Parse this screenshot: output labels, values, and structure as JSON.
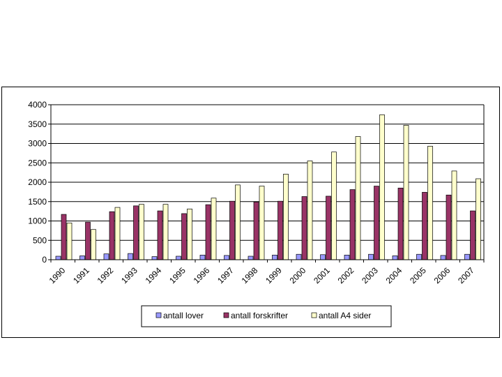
{
  "chart_data": {
    "type": "bar",
    "categories": [
      "1990",
      "1991",
      "1992",
      "1993",
      "1994",
      "1995",
      "1996",
      "1997",
      "1998",
      "1999",
      "2000",
      "2001",
      "2002",
      "2003",
      "2004",
      "2005",
      "2006",
      "2007"
    ],
    "series": [
      {
        "name": "antall lover",
        "color": "#9999ff",
        "values": [
          90,
          100,
          150,
          160,
          80,
          90,
          120,
          110,
          90,
          120,
          140,
          130,
          120,
          140,
          100,
          140,
          110,
          140
        ]
      },
      {
        "name": "antall forskrifter",
        "color": "#993366",
        "values": [
          1170,
          970,
          1240,
          1390,
          1260,
          1190,
          1420,
          1510,
          1490,
          1510,
          1630,
          1640,
          1810,
          1900,
          1850,
          1740,
          1670,
          1260
        ]
      },
      {
        "name": "antall A4 sider",
        "color": "#ffffcc",
        "values": [
          950,
          780,
          1350,
          1430,
          1430,
          1310,
          1590,
          1930,
          1900,
          2210,
          2550,
          2780,
          3180,
          3740,
          3470,
          2930,
          2290,
          2090
        ]
      }
    ],
    "yticks": [
      "0",
      "500",
      "1000",
      "1500",
      "2000",
      "2500",
      "3000",
      "3500",
      "4000"
    ],
    "ylim": [
      0,
      4000
    ],
    "grid": true,
    "legend_position": "bottom"
  }
}
